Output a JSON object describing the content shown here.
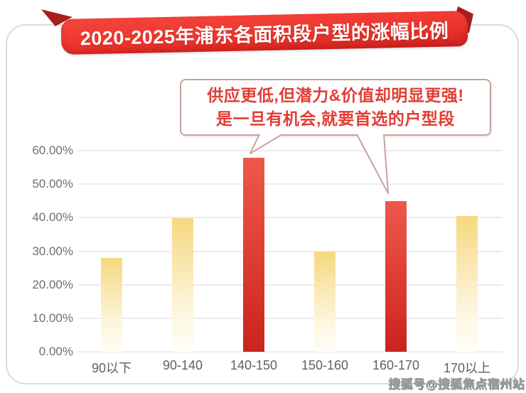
{
  "banner": {
    "title": "2020-2025年浦东各面积段户型的涨幅比例"
  },
  "callout": {
    "line1": "供应更低,但潜力&价值却明显更强!",
    "line2": "是一旦有机会,就要首选的户型段"
  },
  "watermark": "搜狐号@搜狐焦点宿州站",
  "colors": {
    "banner_red": "#ee352d",
    "banner_fold": "#a81e1e",
    "callout_text": "#e23c34",
    "callout_border": "#c7a39c",
    "bar_yellow_top": "#f6d87f",
    "bar_yellow_bottom": "#fffef8",
    "bar_red_top": "#ed584c",
    "bar_red_bottom": "#c9241f",
    "grid": "#ececec",
    "axis_text": "#6e6e6e",
    "card_border": "#dbdbdb",
    "watermark": "#a0a0a0"
  },
  "chart_data": {
    "type": "bar",
    "title": "2020-2025年浦东各面积段户型的涨幅比例",
    "categories": [
      "90以下",
      "90-140",
      "140-150",
      "150-160",
      "160-170",
      "170以上"
    ],
    "values": [
      28,
      39.8,
      57.9,
      30,
      44.9,
      40.4
    ],
    "bar_styles": [
      "yellow",
      "yellow",
      "red",
      "yellow",
      "red",
      "yellow"
    ],
    "y_ticks": [
      {
        "label": "60.00%",
        "value": 60
      },
      {
        "label": "50.00%",
        "value": 50
      },
      {
        "label": "40.00%",
        "value": 40
      },
      {
        "label": "30.00%",
        "value": 30
      },
      {
        "label": "20.00%",
        "value": 20
      },
      {
        "label": "10.00%",
        "value": 10
      },
      {
        "label": "0.00%",
        "value": 0
      }
    ],
    "ylim": [
      0,
      60
    ],
    "xlabel": "",
    "ylabel": "",
    "grid": true,
    "legend": false,
    "annotation": "供应更低,但潜力&价值却明显更强! 是一旦有机会,就要首选的户型段",
    "annotation_targets": [
      "140-150",
      "160-170"
    ]
  }
}
